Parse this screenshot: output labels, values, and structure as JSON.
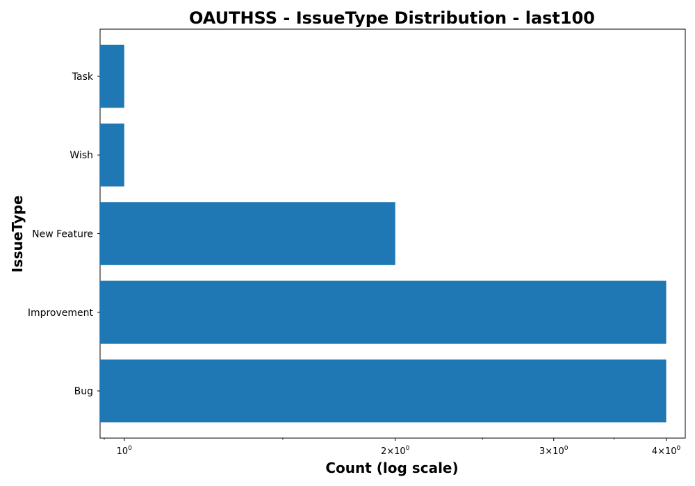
{
  "chart_data": {
    "type": "bar",
    "orientation": "horizontal",
    "title": "OAUTHSS - IssueType Distribution - last100",
    "xlabel": "Count (log scale)",
    "ylabel": "IssueType",
    "x_scale": "log",
    "categories": [
      "Bug",
      "Improvement",
      "New Feature",
      "Wish",
      "Task"
    ],
    "values": [
      4,
      4,
      2,
      1,
      1
    ],
    "xlim": [
      0.94,
      4.2
    ],
    "x_ticks": [
      {
        "value": 1,
        "coef": "",
        "base": "10",
        "exp": "0"
      },
      {
        "value": 2,
        "coef": "2×",
        "base": "10",
        "exp": "0"
      },
      {
        "value": 3,
        "coef": "3×",
        "base": "10",
        "exp": "0"
      },
      {
        "value": 4,
        "coef": "4×",
        "base": "10",
        "exp": "0"
      }
    ],
    "bar_color": "#1f77b4",
    "grid": false,
    "legend": "none"
  }
}
